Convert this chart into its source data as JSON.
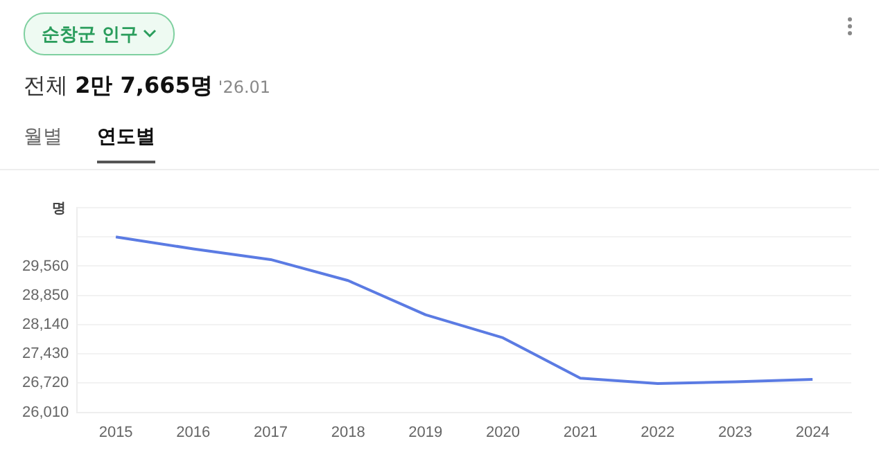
{
  "chart_data": {
    "type": "line",
    "title": "순창군 인구",
    "subtitle": "전체 2만 7,665명",
    "annotations": [
      "'26.01",
      "월별",
      "연도별"
    ],
    "ylabel": "명",
    "categories": [
      "2015",
      "2016",
      "2017",
      "2018",
      "2019",
      "2020",
      "2021",
      "2022",
      "2023",
      "2024"
    ],
    "series": [
      {
        "color": "#5b7be3",
        "values": [
          30270,
          29980,
          29720,
          29210,
          28380,
          27820,
          26840,
          26710,
          26750,
          26810
        ]
      }
    ],
    "ylim": [
      26010,
      30980
    ],
    "yticks": [
      {
        "value": 26010,
        "label": "26,010"
      },
      {
        "value": 26720,
        "label": "26,720"
      },
      {
        "value": 27430,
        "label": "27,430"
      },
      {
        "value": 28140,
        "label": "28,140"
      },
      {
        "value": 28850,
        "label": "28,850"
      },
      {
        "value": 29560,
        "label": "29,560"
      },
      {
        "value": 30270,
        "label": null
      },
      {
        "value": 30980,
        "label": null
      }
    ],
    "grid": "y",
    "legend": false,
    "marker": "none",
    "line_style": "solid"
  }
}
